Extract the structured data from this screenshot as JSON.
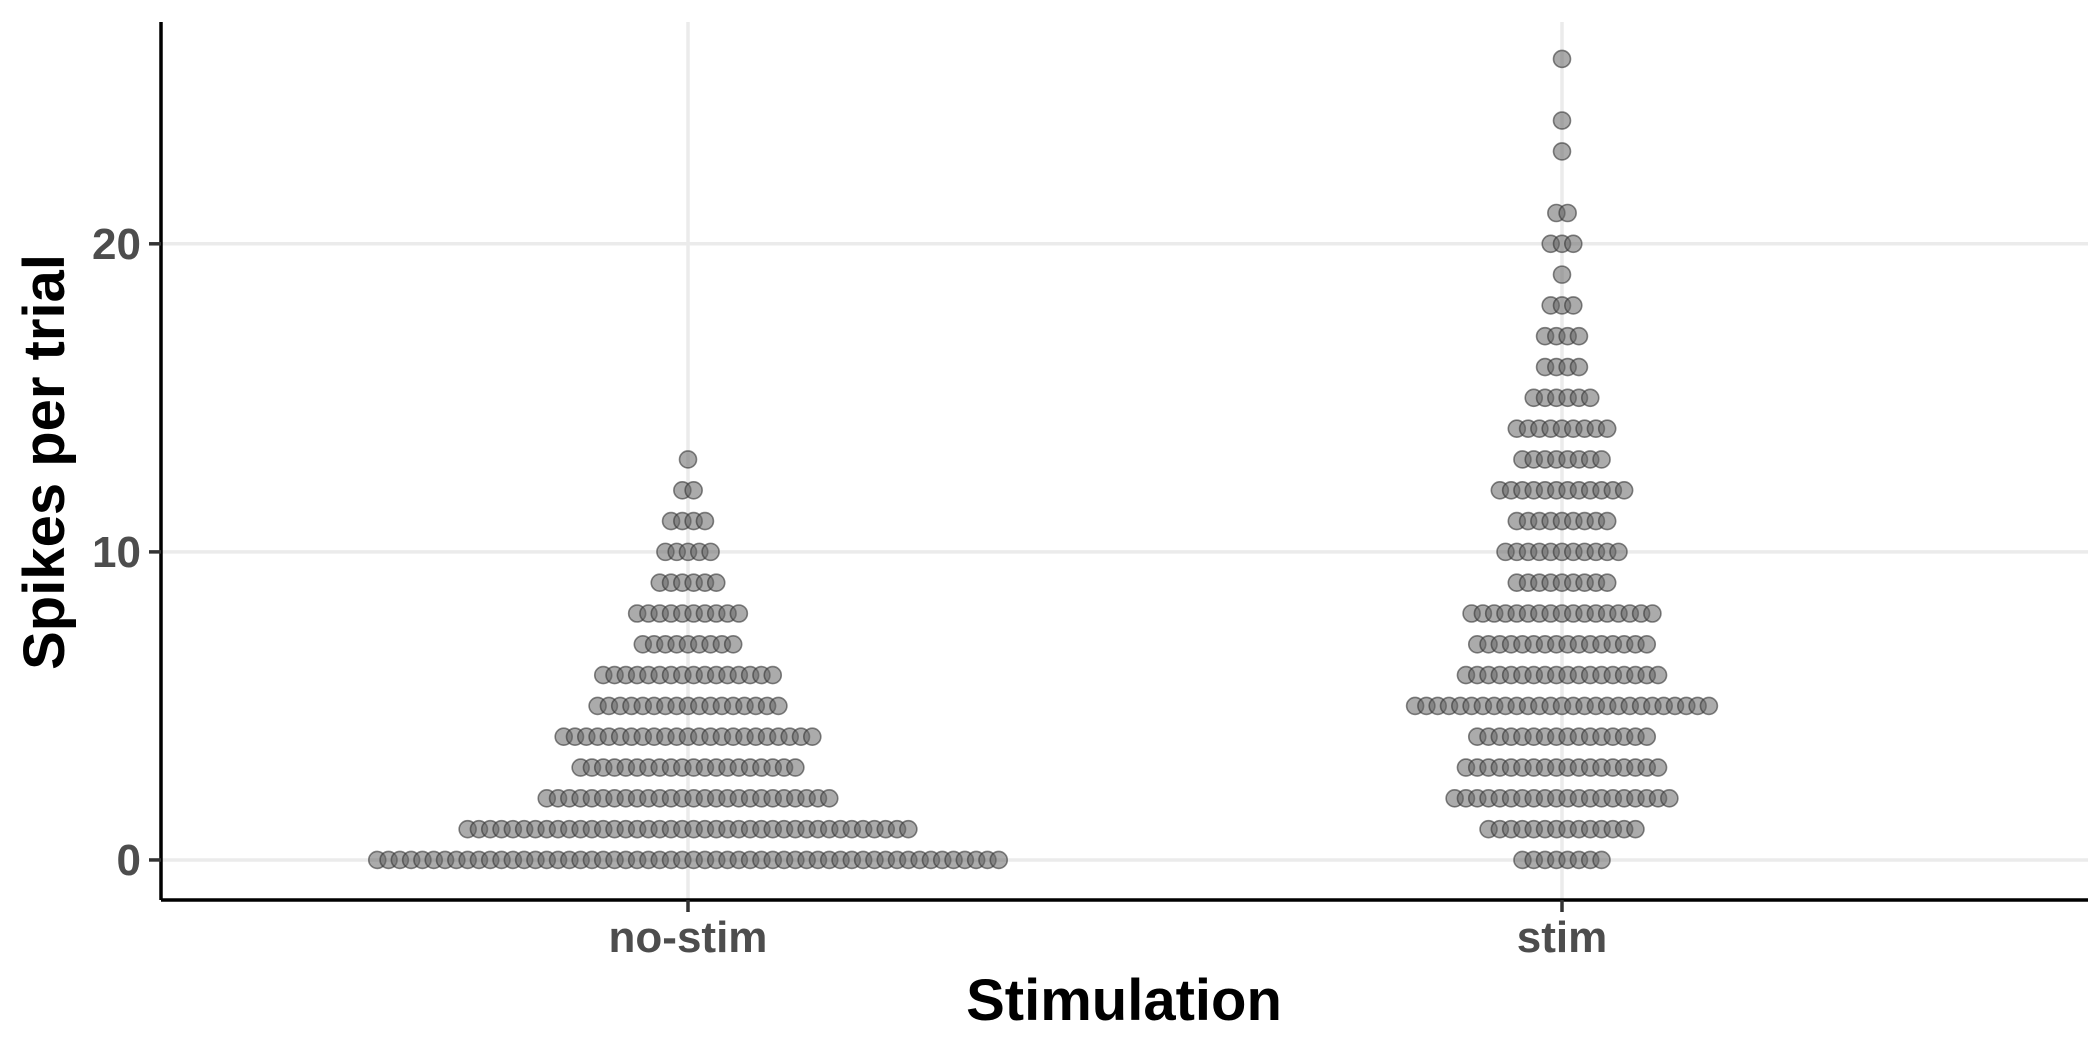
{
  "chart_data": {
    "type": "dotplot",
    "xlabel": "Stimulation",
    "ylabel": "Spikes per trial",
    "categories": [
      "no-stim",
      "stim"
    ],
    "ylim": [
      -1.3,
      27.2
    ],
    "y_ticks": [
      0,
      10,
      20
    ],
    "y_tick_labels": [
      "0",
      "10",
      "20"
    ],
    "grid": true,
    "legend": "none",
    "colors": {
      "point_fill": "#666666",
      "point_stroke": "#333333",
      "grid": "#ebebeb",
      "axis": "#000000"
    },
    "series": [
      {
        "category": "no-stim",
        "counts_by_value": [
          {
            "y": 0,
            "n": 56
          },
          {
            "y": 1,
            "n": 40
          },
          {
            "y": 2,
            "n": 26
          },
          {
            "y": 3,
            "n": 20
          },
          {
            "y": 4,
            "n": 23
          },
          {
            "y": 5,
            "n": 17
          },
          {
            "y": 6,
            "n": 16
          },
          {
            "y": 7,
            "n": 9
          },
          {
            "y": 8,
            "n": 10
          },
          {
            "y": 9,
            "n": 6
          },
          {
            "y": 10,
            "n": 5
          },
          {
            "y": 11,
            "n": 4
          },
          {
            "y": 12,
            "n": 2
          },
          {
            "y": 13,
            "n": 1
          }
        ]
      },
      {
        "category": "stim",
        "counts_by_value": [
          {
            "y": 0,
            "n": 8
          },
          {
            "y": 1,
            "n": 14
          },
          {
            "y": 2,
            "n": 20
          },
          {
            "y": 3,
            "n": 18
          },
          {
            "y": 4,
            "n": 16
          },
          {
            "y": 5,
            "n": 27
          },
          {
            "y": 6,
            "n": 18
          },
          {
            "y": 7,
            "n": 16
          },
          {
            "y": 8,
            "n": 17
          },
          {
            "y": 9,
            "n": 9
          },
          {
            "y": 10,
            "n": 11
          },
          {
            "y": 11,
            "n": 9
          },
          {
            "y": 12,
            "n": 12
          },
          {
            "y": 13,
            "n": 8
          },
          {
            "y": 14,
            "n": 9
          },
          {
            "y": 15,
            "n": 6
          },
          {
            "y": 16,
            "n": 4
          },
          {
            "y": 17,
            "n": 4
          },
          {
            "y": 18,
            "n": 3
          },
          {
            "y": 19,
            "n": 1
          },
          {
            "y": 20,
            "n": 3
          },
          {
            "y": 21,
            "n": 2
          },
          {
            "y": 23,
            "n": 1
          },
          {
            "y": 24,
            "n": 1
          },
          {
            "y": 26,
            "n": 1
          }
        ]
      }
    ]
  }
}
